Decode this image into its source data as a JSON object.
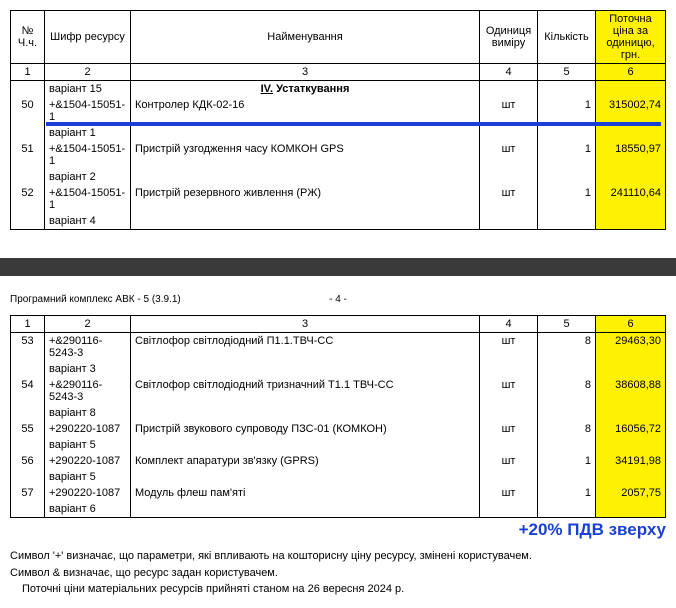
{
  "headers": {
    "c1": "№ Ч.ч.",
    "c2": "Шифр ресурсу",
    "c3": "Найменування",
    "c4": "Одиниця виміру",
    "c5": "Кількість",
    "c6": "Поточна ціна за одиницю, грн."
  },
  "nums": {
    "n1": "1",
    "n2": "2",
    "n3": "3",
    "n4": "4",
    "n5": "5",
    "n6": "6"
  },
  "t1": {
    "pre_variant": "варіант 15",
    "section": {
      "iv": "IV.",
      "title": "Устаткування"
    },
    "r50": {
      "n": "50",
      "code": "+&1504-15051-1",
      "name": "Контролер КДК-02-16",
      "unit": "шт",
      "qty": "1",
      "price": "315002,74",
      "variant": "варіант 1"
    },
    "r51": {
      "n": "51",
      "code": "+&1504-15051-1",
      "name": "Пристрій узгодження часу КОМКОН GPS",
      "unit": "шт",
      "qty": "1",
      "price": "18550,97",
      "variant": "варіант 2"
    },
    "r52": {
      "n": "52",
      "code": "+&1504-15051-1",
      "name": "Пристрій резервного живлення (РЖ)",
      "unit": "шт",
      "qty": "1",
      "price": "241110,64",
      "variant": "варіант 4"
    }
  },
  "page": {
    "software": "Програмний комплекс АВК - 5 (3.9.1)",
    "pg": "- 4 -"
  },
  "t2": {
    "r53": {
      "n": "53",
      "code": "+&290116-5243-3",
      "name": "Світлофор світлодіодний П1.1.ТВЧ-СС",
      "unit": "шт",
      "qty": "8",
      "price": "29463,30",
      "variant": "варіант 3"
    },
    "r54": {
      "n": "54",
      "code": "+&290116-5243-3",
      "name": "Світлофор світлодіодний тризначний  Т1.1 ТВЧ-СС",
      "unit": "шт",
      "qty": "8",
      "price": "38608,88",
      "variant": "варіант 8"
    },
    "r55": {
      "n": "55",
      "code": "+290220-1087",
      "name": "Пристрій звукового супроводу ПЗС-01 (КОМКОН)",
      "unit": "шт",
      "qty": "8",
      "price": "16056,72",
      "variant": "варіант 5"
    },
    "r56": {
      "n": "56",
      "code": "+290220-1087",
      "name": "Комплект апаратури зв'язку  (GPRS)",
      "unit": "шт",
      "qty": "1",
      "price": "34191,98",
      "variant": "варіант 5"
    },
    "r57": {
      "n": "57",
      "code": "+290220-1087",
      "name": "Модуль флеш пам'яті",
      "unit": "шт",
      "qty": "1",
      "price": "2057,75",
      "variant": "варіант 6"
    }
  },
  "vat": "+20% ПДВ зверху",
  "footer": {
    "l1": "Символ '+' визначає, що параметри, які впливають на кошторисну ціну ресурсу, змінені користувачем.",
    "l2": "Символ & визначає, що ресурс задан користувачем.",
    "l3": "Поточні ціни матеріальних ресурсів прийняті станом на 26 вересня 2024 р."
  }
}
